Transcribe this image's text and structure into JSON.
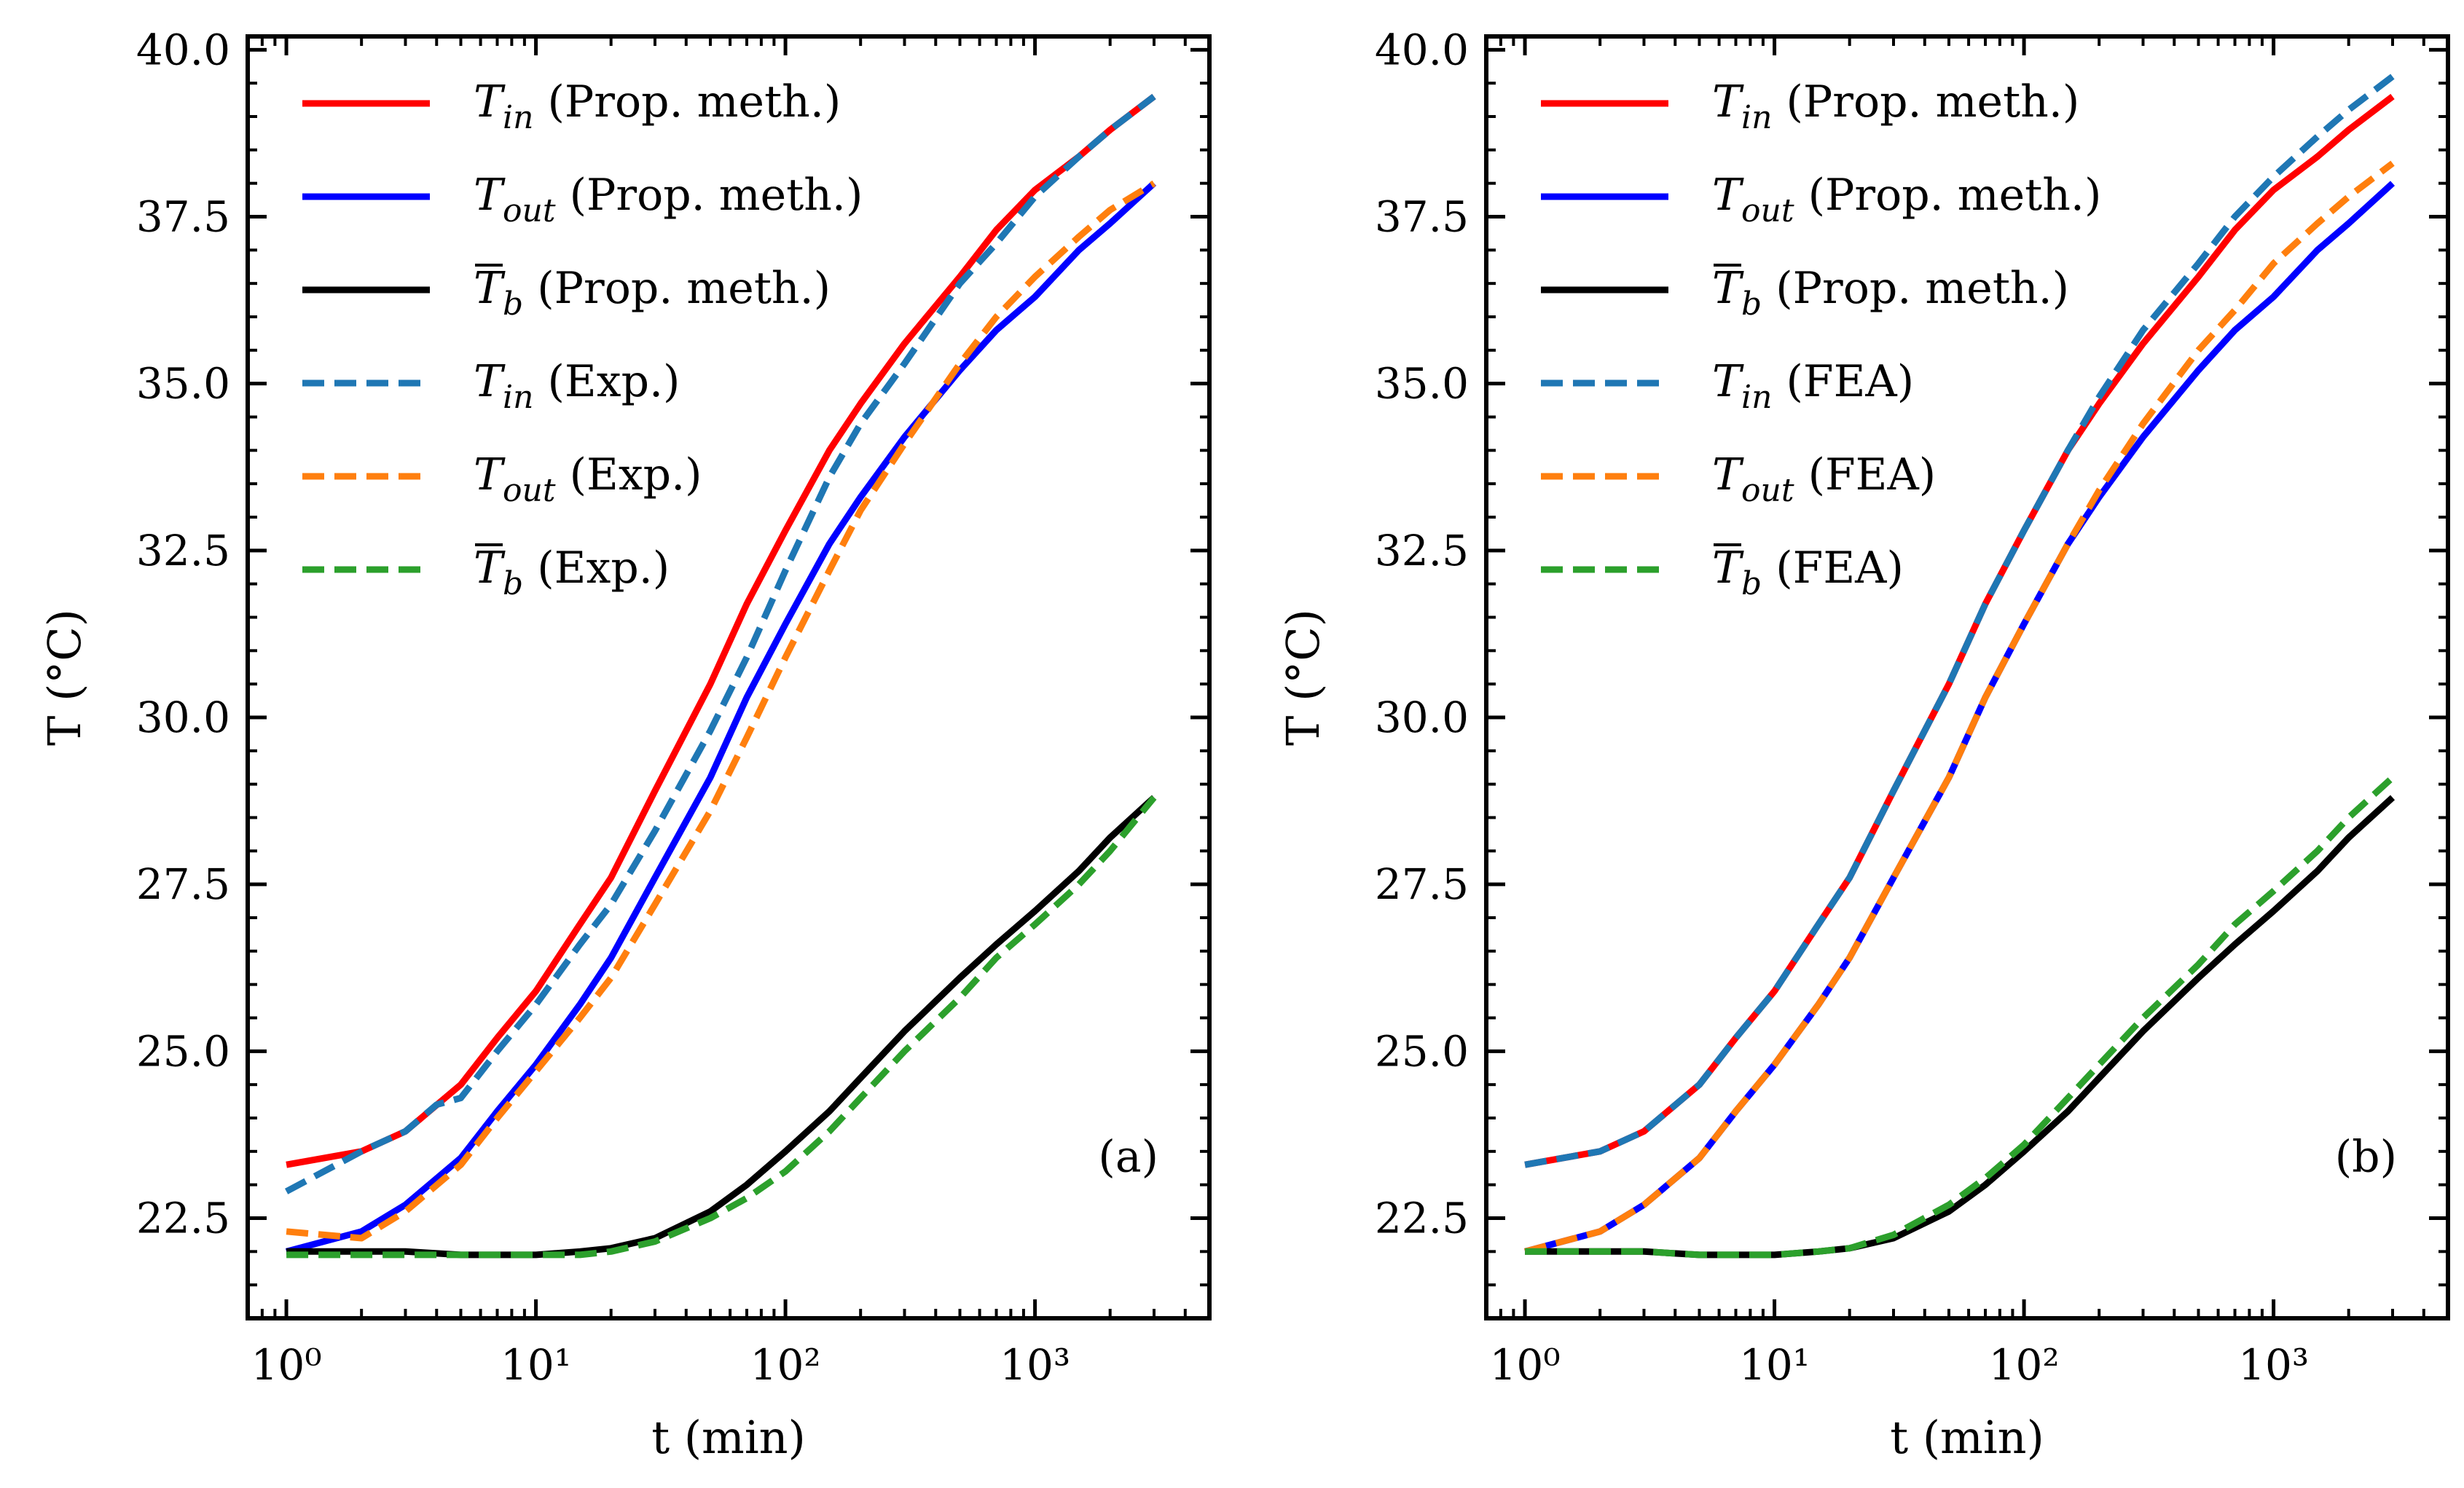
{
  "chart_data": [
    {
      "type": "line",
      "panel_label": "(a)",
      "xscale": "log",
      "xlabel": "t (min)",
      "ylabel": "T (°C)",
      "xlim": [
        0.7,
        5000
      ],
      "ylim": [
        21.0,
        40.2
      ],
      "xticks": [
        {
          "value": 1,
          "label": "10⁰"
        },
        {
          "value": 10,
          "label": "10¹"
        },
        {
          "value": 100,
          "label": "10²"
        },
        {
          "value": 1000,
          "label": "10³"
        }
      ],
      "yticks": [
        22.5,
        25.0,
        27.5,
        30.0,
        32.5,
        35.0,
        37.5,
        40.0
      ],
      "ytick_labels": [
        "22.5",
        "25.0",
        "27.5",
        "30.0",
        "32.5",
        "35.0",
        "37.5",
        "40.0"
      ],
      "legend_position": "top-left",
      "series": [
        {
          "name": "T_in (Prop. meth.)",
          "symbol": "T",
          "sub": "in",
          "bar": false,
          "method": "(Prop. meth.)",
          "color": "#ff0000",
          "dash": "solid",
          "x": [
            1,
            2,
            3,
            5,
            7,
            10,
            15,
            20,
            30,
            50,
            70,
            100,
            150,
            200,
            300,
            500,
            700,
            1000,
            1500,
            2000,
            3000
          ],
          "y": [
            23.3,
            23.5,
            23.8,
            24.5,
            25.2,
            25.9,
            26.9,
            27.6,
            28.9,
            30.5,
            31.7,
            32.8,
            34.0,
            34.7,
            35.6,
            36.6,
            37.3,
            37.9,
            38.4,
            38.8,
            39.3
          ]
        },
        {
          "name": "T_out (Prop. meth.)",
          "symbol": "T",
          "sub": "out",
          "bar": false,
          "method": "(Prop. meth.)",
          "color": "#0000ff",
          "dash": "solid",
          "x": [
            1,
            2,
            3,
            5,
            7,
            10,
            15,
            20,
            30,
            50,
            70,
            100,
            150,
            200,
            300,
            500,
            700,
            1000,
            1500,
            2000,
            3000
          ],
          "y": [
            22.0,
            22.3,
            22.7,
            23.4,
            24.1,
            24.8,
            25.7,
            26.4,
            27.6,
            29.1,
            30.3,
            31.4,
            32.6,
            33.3,
            34.2,
            35.2,
            35.8,
            36.3,
            37.0,
            37.4,
            38.0
          ]
        },
        {
          "name": "T̄_b (Prop. meth.)",
          "symbol": "T",
          "sub": "b",
          "bar": true,
          "method": "(Prop. meth.)",
          "color": "#000000",
          "dash": "solid",
          "x": [
            1,
            2,
            3,
            5,
            7,
            10,
            15,
            20,
            30,
            50,
            70,
            100,
            150,
            200,
            300,
            500,
            700,
            1000,
            1500,
            2000,
            3000
          ],
          "y": [
            22.0,
            22.0,
            22.0,
            21.95,
            21.95,
            21.95,
            22.0,
            22.05,
            22.2,
            22.6,
            23.0,
            23.5,
            24.1,
            24.6,
            25.3,
            26.1,
            26.6,
            27.1,
            27.7,
            28.2,
            28.8
          ]
        },
        {
          "name": "T_in (Exp.)",
          "symbol": "T",
          "sub": "in",
          "bar": false,
          "method": "(Exp.)",
          "color": "#1f77b4",
          "dash": "dashed",
          "x": [
            1,
            2,
            3,
            4,
            5,
            7,
            10,
            15,
            20,
            30,
            50,
            70,
            100,
            150,
            200,
            300,
            500,
            700,
            1000,
            1500,
            2000,
            3000
          ],
          "y": [
            22.9,
            23.5,
            23.8,
            24.2,
            24.3,
            25.0,
            25.7,
            26.6,
            27.2,
            28.3,
            29.8,
            30.9,
            32.2,
            33.6,
            34.4,
            35.3,
            36.5,
            37.1,
            37.8,
            38.4,
            38.8,
            39.3
          ]
        },
        {
          "name": "T_out (Exp.)",
          "symbol": "T",
          "sub": "out",
          "bar": false,
          "method": "(Exp.)",
          "color": "#ff7f0e",
          "dash": "dashed",
          "x": [
            1,
            2,
            3,
            5,
            7,
            10,
            15,
            20,
            30,
            50,
            70,
            100,
            150,
            200,
            300,
            500,
            700,
            1000,
            1500,
            2000,
            3000
          ],
          "y": [
            22.3,
            22.2,
            22.6,
            23.3,
            24.0,
            24.7,
            25.5,
            26.1,
            27.2,
            28.6,
            29.7,
            30.9,
            32.2,
            33.1,
            34.1,
            35.3,
            36.0,
            36.6,
            37.2,
            37.6,
            38.0
          ]
        },
        {
          "name": "T̄_b (Exp.)",
          "symbol": "T",
          "sub": "b",
          "bar": true,
          "method": "(Exp.)",
          "color": "#2ca02c",
          "dash": "dashed",
          "x": [
            1,
            2,
            3,
            5,
            7,
            10,
            15,
            20,
            30,
            50,
            70,
            100,
            150,
            200,
            300,
            500,
            700,
            1000,
            1500,
            2000,
            3000
          ],
          "y": [
            21.95,
            21.95,
            21.95,
            21.95,
            21.95,
            21.95,
            21.95,
            22.0,
            22.15,
            22.5,
            22.8,
            23.2,
            23.8,
            24.3,
            25.0,
            25.8,
            26.4,
            26.9,
            27.5,
            28.0,
            28.8
          ]
        }
      ]
    },
    {
      "type": "line",
      "panel_label": "(b)",
      "xscale": "log",
      "xlabel": "t (min)",
      "ylabel": "T (°C)",
      "xlim": [
        0.7,
        5000
      ],
      "ylim": [
        21.0,
        40.2
      ],
      "xticks": [
        {
          "value": 1,
          "label": "10⁰"
        },
        {
          "value": 10,
          "label": "10¹"
        },
        {
          "value": 100,
          "label": "10²"
        },
        {
          "value": 1000,
          "label": "10³"
        }
      ],
      "yticks": [
        22.5,
        25.0,
        27.5,
        30.0,
        32.5,
        35.0,
        37.5,
        40.0
      ],
      "ytick_labels": [
        "22.5",
        "25.0",
        "27.5",
        "30.0",
        "32.5",
        "35.0",
        "37.5",
        "40.0"
      ],
      "legend_position": "top-left",
      "series": [
        {
          "name": "T_in (Prop. meth.)",
          "symbol": "T",
          "sub": "in",
          "bar": false,
          "method": "(Prop. meth.)",
          "color": "#ff0000",
          "dash": "solid",
          "x": [
            1,
            2,
            3,
            5,
            7,
            10,
            15,
            20,
            30,
            50,
            70,
            100,
            150,
            200,
            300,
            500,
            700,
            1000,
            1500,
            2000,
            3000
          ],
          "y": [
            23.3,
            23.5,
            23.8,
            24.5,
            25.2,
            25.9,
            26.9,
            27.6,
            28.9,
            30.5,
            31.7,
            32.8,
            34.0,
            34.7,
            35.6,
            36.6,
            37.3,
            37.9,
            38.4,
            38.8,
            39.3
          ]
        },
        {
          "name": "T_out (Prop. meth.)",
          "symbol": "T",
          "sub": "out",
          "bar": false,
          "method": "(Prop. meth.)",
          "color": "#0000ff",
          "dash": "solid",
          "x": [
            1,
            2,
            3,
            5,
            7,
            10,
            15,
            20,
            30,
            50,
            70,
            100,
            150,
            200,
            300,
            500,
            700,
            1000,
            1500,
            2000,
            3000
          ],
          "y": [
            22.0,
            22.3,
            22.7,
            23.4,
            24.1,
            24.8,
            25.7,
            26.4,
            27.6,
            29.1,
            30.3,
            31.4,
            32.6,
            33.3,
            34.2,
            35.2,
            35.8,
            36.3,
            37.0,
            37.4,
            38.0
          ]
        },
        {
          "name": "T̄_b (Prop. meth.)",
          "symbol": "T",
          "sub": "b",
          "bar": true,
          "method": "(Prop. meth.)",
          "color": "#000000",
          "dash": "solid",
          "x": [
            1,
            2,
            3,
            5,
            7,
            10,
            15,
            20,
            30,
            50,
            70,
            100,
            150,
            200,
            300,
            500,
            700,
            1000,
            1500,
            2000,
            3000
          ],
          "y": [
            22.0,
            22.0,
            22.0,
            21.95,
            21.95,
            21.95,
            22.0,
            22.05,
            22.2,
            22.6,
            23.0,
            23.5,
            24.1,
            24.6,
            25.3,
            26.1,
            26.6,
            27.1,
            27.7,
            28.2,
            28.8
          ]
        },
        {
          "name": "T_in (FEA)",
          "symbol": "T",
          "sub": "in",
          "bar": false,
          "method": "(FEA)",
          "color": "#1f77b4",
          "dash": "dashed",
          "x": [
            1,
            2,
            3,
            5,
            7,
            10,
            15,
            20,
            30,
            50,
            70,
            100,
            150,
            200,
            300,
            500,
            700,
            1000,
            1500,
            2000,
            3000
          ],
          "y": [
            23.3,
            23.5,
            23.8,
            24.5,
            25.2,
            25.9,
            26.9,
            27.6,
            28.9,
            30.5,
            31.7,
            32.8,
            34.0,
            34.8,
            35.8,
            36.8,
            37.5,
            38.1,
            38.7,
            39.1,
            39.6
          ]
        },
        {
          "name": "T_out (FEA)",
          "symbol": "T",
          "sub": "out",
          "bar": false,
          "method": "(FEA)",
          "color": "#ff7f0e",
          "dash": "dashed",
          "x": [
            1,
            2,
            3,
            5,
            7,
            10,
            15,
            20,
            30,
            50,
            70,
            100,
            150,
            200,
            300,
            500,
            700,
            1000,
            1500,
            2000,
            3000
          ],
          "y": [
            22.0,
            22.3,
            22.7,
            23.4,
            24.1,
            24.8,
            25.7,
            26.4,
            27.6,
            29.1,
            30.3,
            31.4,
            32.6,
            33.4,
            34.4,
            35.5,
            36.1,
            36.8,
            37.4,
            37.8,
            38.3
          ]
        },
        {
          "name": "T̄_b (FEA)",
          "symbol": "T",
          "sub": "b",
          "bar": true,
          "method": "(FEA)",
          "color": "#2ca02c",
          "dash": "dashed",
          "x": [
            1,
            2,
            3,
            5,
            7,
            10,
            15,
            20,
            30,
            50,
            70,
            100,
            150,
            200,
            300,
            500,
            700,
            1000,
            1500,
            2000,
            3000
          ],
          "y": [
            22.0,
            22.0,
            22.0,
            21.95,
            21.95,
            21.95,
            22.0,
            22.05,
            22.25,
            22.7,
            23.1,
            23.6,
            24.3,
            24.8,
            25.5,
            26.3,
            26.9,
            27.4,
            28.0,
            28.5,
            29.1
          ]
        }
      ]
    }
  ]
}
